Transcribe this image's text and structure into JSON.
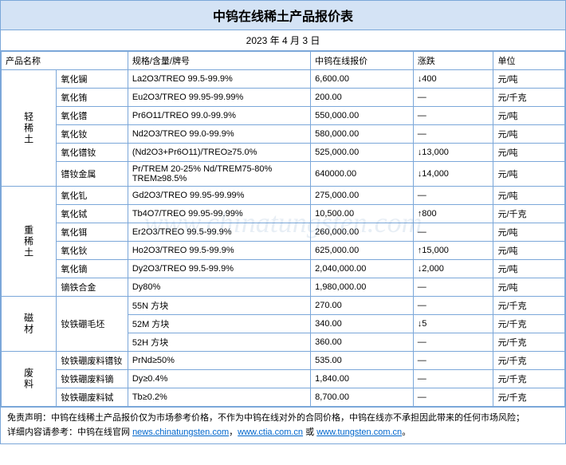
{
  "title": "中钨在线稀土产品报价表",
  "date": "2023 年 4 月 3 日",
  "watermark": "www.chinatungsten.com",
  "headers": {
    "product": "产品名称",
    "spec": "规格/含量/牌号",
    "price": "中钨在线报价",
    "change": "涨跌",
    "unit": "单位"
  },
  "categories": [
    {
      "name": "轻稀土",
      "rows": [
        {
          "p": "氧化镧",
          "s": "La2O3/TREO 99.5-99.9%",
          "pr": "6,600.00",
          "c": "↓400",
          "u": "元/吨"
        },
        {
          "p": "氧化铕",
          "s": "Eu2O3/TREO 99.95-99.99%",
          "pr": "200.00",
          "c": "—",
          "u": "元/千克"
        },
        {
          "p": "氧化镨",
          "s": "Pr6O11/TREO 99.0-99.9%",
          "pr": "550,000.00",
          "c": "—",
          "u": "元/吨"
        },
        {
          "p": "氧化钕",
          "s": "Nd2O3/TREO 99.0-99.9%",
          "pr": "580,000.00",
          "c": "—",
          "u": "元/吨"
        },
        {
          "p": "氧化镨钕",
          "s": "(Nd2O3+Pr6O11)/TREO≥75.0%",
          "pr": "525,000.00",
          "c": "↓13,000",
          "u": "元/吨"
        },
        {
          "p": "镨钕金属",
          "s": "Pr/TREM 20-25% Nd/TREM75-80% TREM≥98.5%",
          "pr": "640000.00",
          "c": "↓14,000",
          "u": "元/吨"
        }
      ]
    },
    {
      "name": "重稀土",
      "rows": [
        {
          "p": "氧化钆",
          "s": "Gd2O3/TREO 99.95-99.99%",
          "pr": "275,000.00",
          "c": "—",
          "u": "元/吨"
        },
        {
          "p": "氧化铽",
          "s": "Tb4O7/TREO 99.95-99.99%",
          "pr": "10,500.00",
          "c": "↑800",
          "u": "元/千克"
        },
        {
          "p": "氧化铒",
          "s": "Er2O3/TREO 99.5-99.9%",
          "pr": "260,000.00",
          "c": "—",
          "u": "元/吨"
        },
        {
          "p": "氧化钬",
          "s": "Ho2O3/TREO 99.5-99.9%",
          "pr": "625,000.00",
          "c": "↑15,000",
          "u": "元/吨"
        },
        {
          "p": "氧化镝",
          "s": "Dy2O3/TREO 99.5-99.9%",
          "pr": "2,040,000.00",
          "c": "↓2,000",
          "u": "元/吨"
        },
        {
          "p": "镝铁合金",
          "s": "Dy80%",
          "pr": "1,980,000.00",
          "c": "—",
          "u": "元/吨"
        }
      ]
    },
    {
      "name": "磁材",
      "rows": [
        {
          "p": "钕铁硼毛坯",
          "s": "55N 方块",
          "pr": "270.00",
          "c": "—",
          "u": "元/千克",
          "rowspan": 3
        },
        {
          "s": "52M 方块",
          "pr": "340.00",
          "c": "↓5",
          "u": "元/千克"
        },
        {
          "s": "52H 方块",
          "pr": "360.00",
          "c": "—",
          "u": "元/千克"
        }
      ]
    },
    {
      "name": "废料",
      "rows": [
        {
          "p": "钕铁硼废料镨钕",
          "s": "PrNd≥50%",
          "pr": "535.00",
          "c": "—",
          "u": "元/千克"
        },
        {
          "p": "钕铁硼废料镝",
          "s": "Dy≥0.4%",
          "pr": "1,840.00",
          "c": "—",
          "u": "元/千克"
        },
        {
          "p": "钕铁硼废料铽",
          "s": "Tb≥0.2%",
          "pr": "8,700.00",
          "c": "—",
          "u": "元/千克"
        }
      ]
    }
  ],
  "disclaimer": {
    "line1_prefix": "免责声明：中钨在线稀土产品报价仅为市场参考价格，不作为中钨在线对外的合同价格，中钨在线亦不承担因此带来的任何市场风险；",
    "line2_prefix": "详细内容请参考：中钨在线官网 ",
    "links": [
      {
        "text": "news.chinatungsten.com",
        "sep": "，"
      },
      {
        "text": "www.ctia.com.cn",
        "sep": " 或 "
      },
      {
        "text": "www.tungsten.com.cn",
        "sep": "。"
      }
    ]
  },
  "colors": {
    "border": "#7ba7d9",
    "header_bg": "#d4e3f5",
    "link": "#0066cc"
  }
}
